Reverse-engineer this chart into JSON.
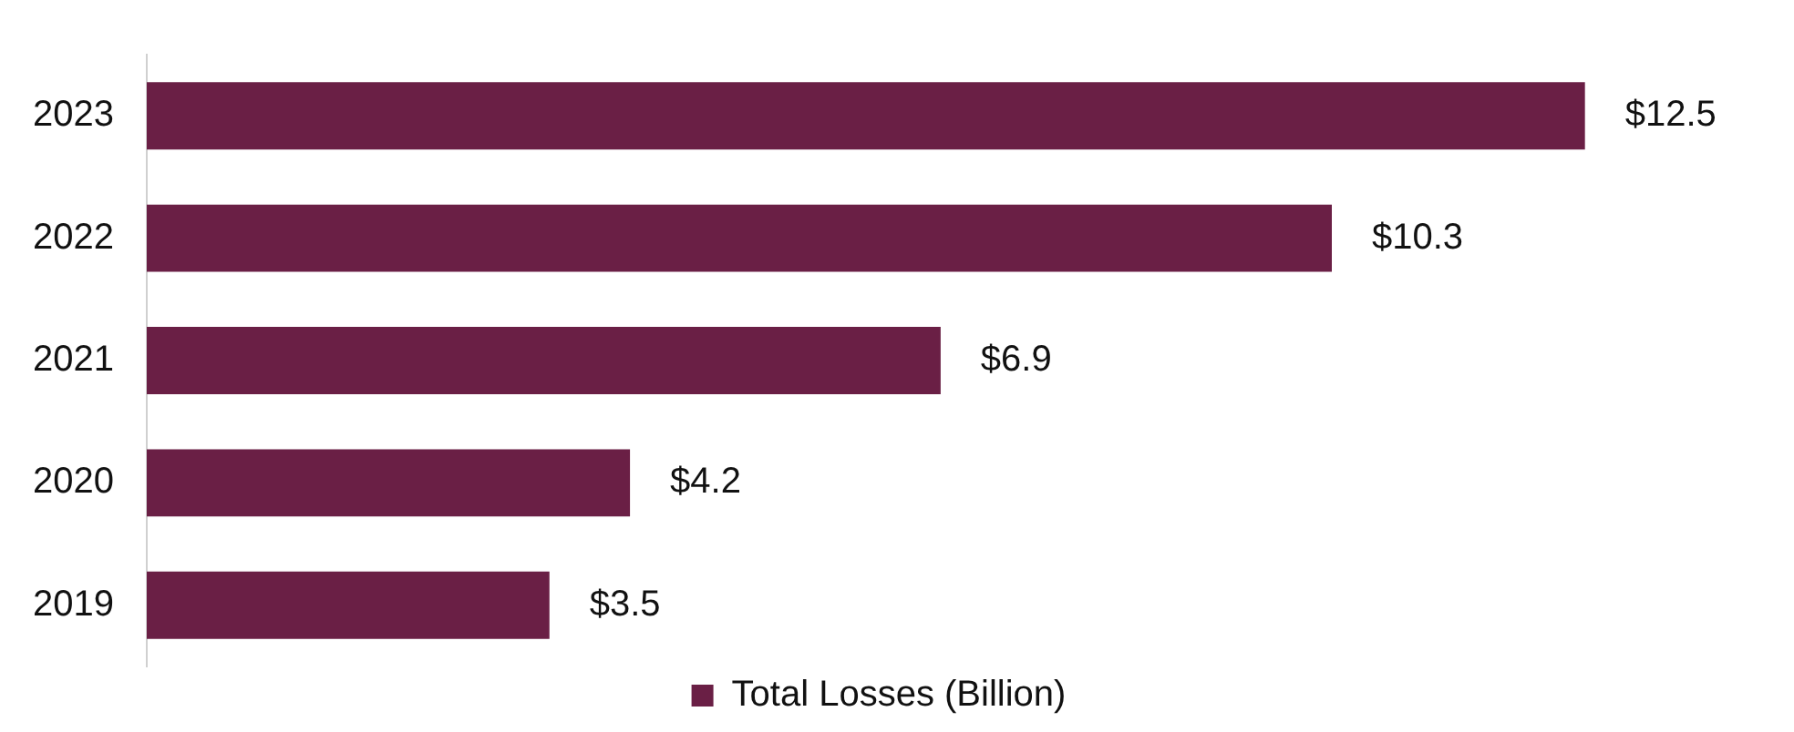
{
  "chart_data": {
    "type": "bar",
    "orientation": "horizontal",
    "categories": [
      "2023",
      "2022",
      "2021",
      "2020",
      "2019"
    ],
    "series": [
      {
        "name": "Total Losses (Billion)",
        "color": "#6a1f45",
        "values": [
          12.5,
          10.3,
          6.9,
          4.2,
          3.5
        ],
        "value_labels": [
          "$12.5",
          "$10.3",
          "$6.9",
          "$4.2",
          "$3.5"
        ]
      }
    ],
    "tick_labels": "y",
    "grid": false,
    "legend": "bottom"
  }
}
